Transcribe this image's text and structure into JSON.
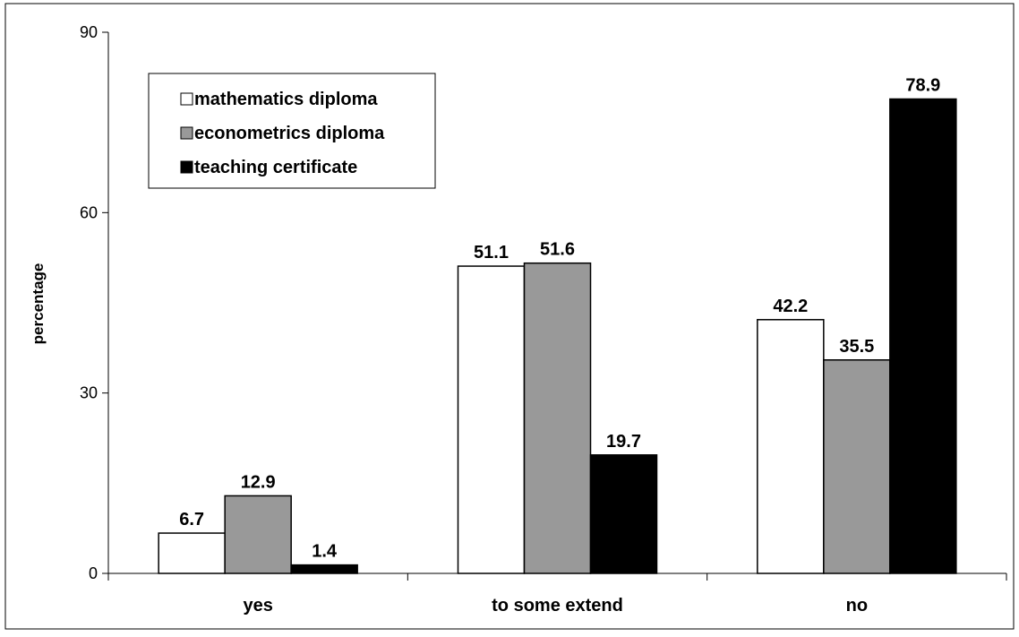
{
  "chart_data": {
    "type": "bar",
    "title": "",
    "xlabel": "",
    "ylabel": "percentage",
    "ylim": [
      0,
      90
    ],
    "yticks": [
      0,
      30,
      60,
      90
    ],
    "grid": false,
    "legend_position": "top-left",
    "categories": [
      "yes",
      "to some extend",
      "no"
    ],
    "series": [
      {
        "name": "mathematics diploma",
        "color": "#ffffff",
        "values": [
          6.7,
          51.1,
          42.2
        ],
        "labels": [
          "6.7",
          "51.1",
          "42.2"
        ]
      },
      {
        "name": "econometrics diploma",
        "color": "#999999",
        "values": [
          12.9,
          51.6,
          35.5
        ],
        "labels": [
          "12.9",
          "51.6",
          "35.5"
        ]
      },
      {
        "name": "teaching certificate",
        "color": "#000000",
        "values": [
          1.4,
          19.7,
          78.9
        ],
        "labels": [
          "1.4",
          "19.7",
          "78.9"
        ]
      }
    ]
  }
}
